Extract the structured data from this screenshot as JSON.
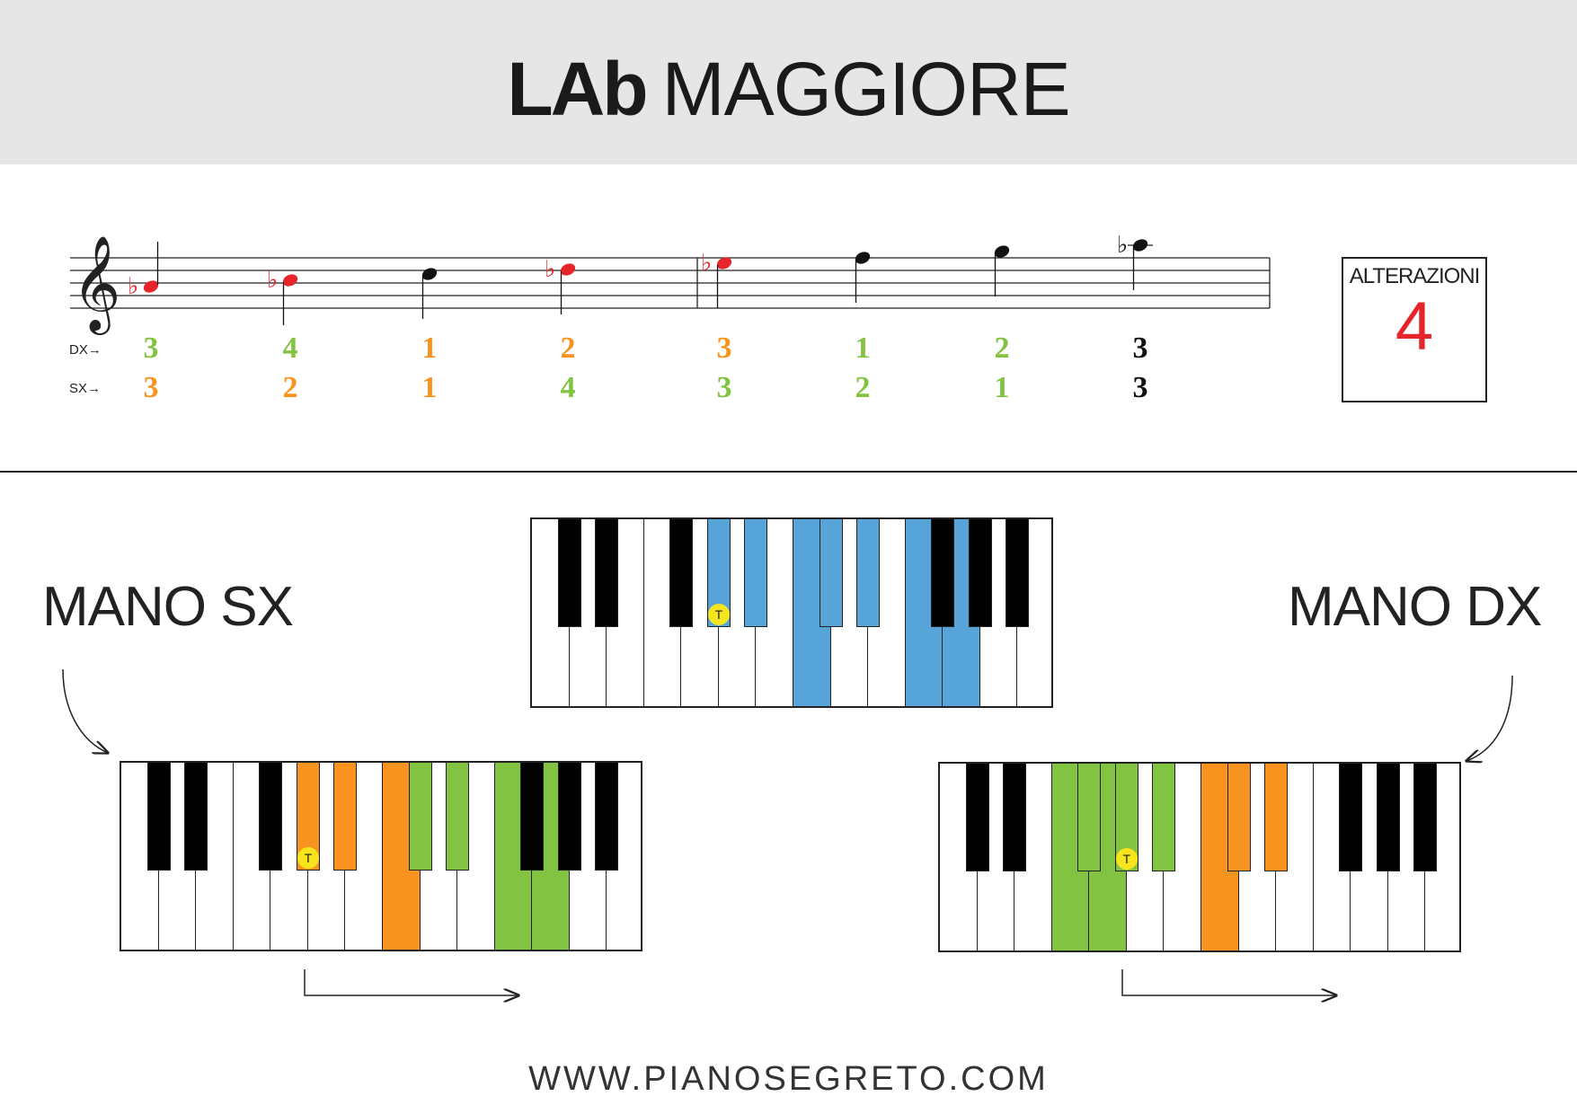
{
  "title": {
    "note": "LAb",
    "mode": "MAGGIORE"
  },
  "fingering": {
    "dx_label": "DX→",
    "sx_label": "SX→",
    "dx": [
      "3",
      "4",
      "1",
      "2",
      "3",
      "1",
      "2",
      "3"
    ],
    "sx": [
      "3",
      "2",
      "1",
      "4",
      "3",
      "2",
      "1",
      "3"
    ],
    "dx_colors": [
      "#82c341",
      "#82c341",
      "#f7931e",
      "#f7931e",
      "#f7931e",
      "#82c341",
      "#82c341",
      "#111111"
    ],
    "sx_colors": [
      "#f7931e",
      "#f7931e",
      "#f7931e",
      "#82c341",
      "#82c341",
      "#82c341",
      "#82c341",
      "#111111"
    ]
  },
  "staff": {
    "clef": "treble",
    "notes": [
      "LAb",
      "SIb",
      "DO",
      "REb",
      "MIb",
      "FA",
      "SOL",
      "LAb"
    ],
    "flat_color": "#e5252a"
  },
  "alterations": {
    "label": "ALTERAZIONI",
    "value": "4"
  },
  "hands": {
    "left": "MANO SX",
    "right": "MANO DX"
  },
  "colors": {
    "blue": "#57a5d8",
    "orange": "#f7931e",
    "green": "#82c341",
    "tonic": "#f6e51c",
    "black": "#000000"
  },
  "tonic_marker": "T",
  "footer": "WWW.PIANOSEGRETO.COM"
}
